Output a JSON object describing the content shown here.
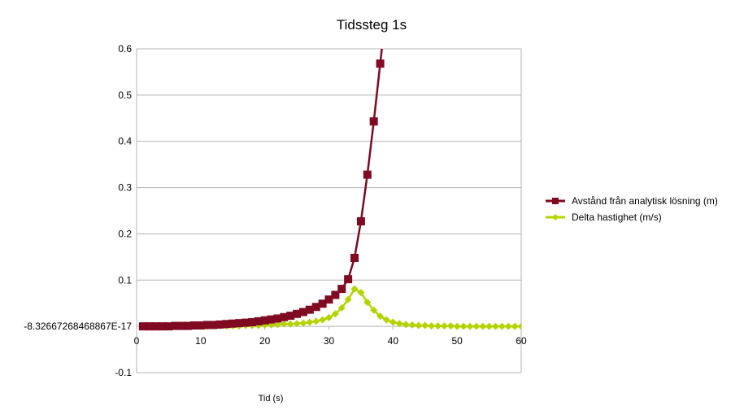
{
  "chart_data": {
    "type": "line",
    "title": "Tidssteg 1s",
    "xlabel": "Tid (s)",
    "ylabel": "",
    "xlim": [
      0,
      60
    ],
    "ylim": [
      -0.1,
      0.6
    ],
    "x_ticks": [
      "0",
      "10",
      "20",
      "30",
      "40",
      "50",
      "60"
    ],
    "y_ticks": [
      {
        "value": 0.6,
        "label": "0.6"
      },
      {
        "value": 0.5,
        "label": "0.5"
      },
      {
        "value": 0.4,
        "label": "0.4"
      },
      {
        "value": 0.3,
        "label": "0.3"
      },
      {
        "value": 0.2,
        "label": "0.2"
      },
      {
        "value": 0.1,
        "label": "0.1"
      },
      {
        "value": 0,
        "label": "-8.32667268468867E-17"
      },
      {
        "value": -0.1,
        "label": "-0.1"
      }
    ],
    "grid": {
      "horizontal": true,
      "vertical": false
    },
    "legend_position": "right",
    "series": [
      {
        "name": "Avstånd från analytisk lösning (m)",
        "color": "#7f0a22",
        "marker": "square",
        "x": [
          1,
          2,
          3,
          4,
          5,
          6,
          7,
          8,
          9,
          10,
          11,
          12,
          13,
          14,
          15,
          16,
          17,
          18,
          19,
          20,
          21,
          22,
          23,
          24,
          25,
          26,
          27,
          28,
          29,
          30,
          31,
          32,
          33,
          34,
          35,
          36,
          37,
          38
        ],
        "y": [
          0,
          0,
          0,
          0,
          0,
          0.001,
          0.001,
          0.001,
          0.002,
          0.002,
          0.003,
          0.003,
          0.004,
          0.005,
          0.006,
          0.007,
          0.008,
          0.009,
          0.011,
          0.013,
          0.015,
          0.017,
          0.02,
          0.023,
          0.027,
          0.031,
          0.036,
          0.042,
          0.049,
          0.058,
          0.068,
          0.081,
          0.102,
          0.148,
          0.227,
          0.328,
          0.443,
          0.568
        ]
      },
      {
        "name": "Delta hastighet (m/s)",
        "color": "#b5d300",
        "marker": "diamond",
        "x": [
          1,
          2,
          3,
          4,
          5,
          6,
          7,
          8,
          9,
          10,
          11,
          12,
          13,
          14,
          15,
          16,
          17,
          18,
          19,
          20,
          21,
          22,
          23,
          24,
          25,
          26,
          27,
          28,
          29,
          30,
          31,
          32,
          33,
          34,
          35,
          36,
          37,
          38,
          39,
          40,
          41,
          42,
          43,
          44,
          45,
          46,
          47,
          48,
          49,
          50,
          51,
          52,
          53,
          54,
          55,
          56,
          57,
          58,
          59,
          60
        ],
        "y": [
          0,
          0,
          0,
          0,
          0,
          0,
          0,
          0,
          0,
          0,
          0,
          0.001,
          0.001,
          0.001,
          0.001,
          0.001,
          0.002,
          0.002,
          0.002,
          0.003,
          0.003,
          0.004,
          0.005,
          0.005,
          0.006,
          0.007,
          0.009,
          0.011,
          0.014,
          0.019,
          0.027,
          0.04,
          0.058,
          0.081,
          0.073,
          0.052,
          0.035,
          0.022,
          0.014,
          0.009,
          0.006,
          0.004,
          0.003,
          0.002,
          0.002,
          0.001,
          0.001,
          0.001,
          0.001,
          0,
          0,
          0,
          0,
          0,
          0,
          0,
          0,
          0,
          0,
          0
        ]
      }
    ]
  }
}
